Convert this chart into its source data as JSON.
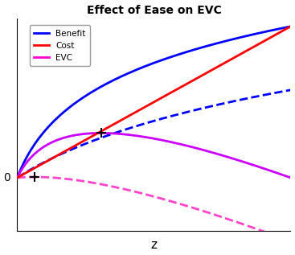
{
  "title": "Effect of Ease on EVC",
  "xlabel": "z",
  "legend": [
    {
      "label": "Benefit",
      "color": "#0000FF"
    },
    {
      "label": "Cost",
      "color": "#FF0000"
    },
    {
      "label": "EVC",
      "color": "#FF00CC"
    }
  ],
  "benefit1_color": "#0000FF",
  "benefit2_color": "#0000FF",
  "cost_color": "#FF0000",
  "evc1_color": "#CC00FF",
  "evc2_color": "#FF44CC",
  "linewidth_solid": 2.0,
  "linewidth_dashed": 2.0,
  "star_color": "black",
  "star_size": 9,
  "xlim": [
    0,
    1
  ],
  "ylim": [
    -0.35,
    1.05
  ],
  "figsize": [
    3.67,
    3.17
  ],
  "dpi": 100,
  "background": "#FFFFFF",
  "zero_label_fontsize": 10,
  "xlabel_fontsize": 11,
  "title_fontsize": 10
}
